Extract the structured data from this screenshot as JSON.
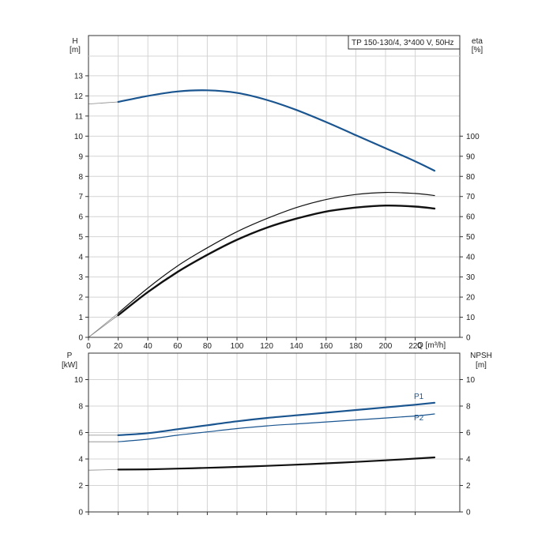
{
  "chart_data": [
    {
      "type": "line",
      "title": "TP 150-130/4, 3*400 V, 50Hz",
      "xlabel": "Q [m³/h]",
      "x_ticks": [
        "0",
        "20",
        "40",
        "60",
        "80",
        "100",
        "120",
        "140",
        "160",
        "180",
        "200",
        "220"
      ],
      "xlim": [
        0,
        250
      ],
      "left_axis": {
        "label_top": "H",
        "label_unit": "[m]",
        "ylim": [
          0,
          15
        ],
        "ticks": [
          0,
          1,
          2,
          3,
          4,
          5,
          6,
          7,
          8,
          9,
          10,
          11,
          12,
          13
        ]
      },
      "right_axis": {
        "label_top": "eta",
        "label_unit": "[%]",
        "ylim": [
          0,
          150
        ],
        "ticks": [
          0,
          10,
          20,
          30,
          40,
          50,
          60,
          70,
          80,
          90,
          100
        ]
      },
      "grid": true,
      "colors": {
        "head": "#1a5590",
        "eta": "#111111"
      },
      "series": [
        {
          "axis": "left",
          "color": "head",
          "width": 2.2,
          "points": [
            [
              20,
              11.7
            ],
            [
              40,
              12.0
            ],
            [
              60,
              12.22
            ],
            [
              80,
              12.28
            ],
            [
              100,
              12.15
            ],
            [
              120,
              11.8
            ],
            [
              140,
              11.3
            ],
            [
              160,
              10.7
            ],
            [
              180,
              10.05
            ],
            [
              200,
              9.4
            ],
            [
              220,
              8.75
            ],
            [
              233,
              8.28
            ]
          ],
          "extrapolated": [
            [
              0,
              11.6
            ],
            [
              20,
              11.7
            ]
          ]
        },
        {
          "axis": "right",
          "color": "eta",
          "width": 1.2,
          "points": [
            [
              20,
              12
            ],
            [
              40,
              24.5
            ],
            [
              60,
              35.5
            ],
            [
              80,
              44.5
            ],
            [
              100,
              52.5
            ],
            [
              120,
              59
            ],
            [
              140,
              64.5
            ],
            [
              160,
              68.5
            ],
            [
              180,
              71
            ],
            [
              200,
              72
            ],
            [
              220,
              71.5
            ],
            [
              233,
              70.5
            ]
          ],
          "extrapolated": [
            [
              0,
              0
            ],
            [
              20,
              12
            ]
          ]
        },
        {
          "axis": "right",
          "color": "eta",
          "width": 2.4,
          "points": [
            [
              20,
              11
            ],
            [
              40,
              22.5
            ],
            [
              60,
              32.5
            ],
            [
              80,
              41
            ],
            [
              100,
              48.5
            ],
            [
              120,
              54.5
            ],
            [
              140,
              59
            ],
            [
              160,
              62.5
            ],
            [
              180,
              64.5
            ],
            [
              200,
              65.5
            ],
            [
              220,
              65
            ],
            [
              233,
              64
            ]
          ],
          "extrapolated": [
            [
              0,
              0
            ],
            [
              20,
              11
            ]
          ]
        }
      ]
    },
    {
      "type": "line",
      "xlim": [
        0,
        250
      ],
      "left_axis": {
        "label_top": "P",
        "label_unit": "[kW]",
        "ylim": [
          0,
          12
        ],
        "ticks": [
          0,
          2,
          4,
          6,
          8,
          10
        ]
      },
      "right_axis": {
        "label_top": "NPSH",
        "label_unit": "[m]",
        "ylim": [
          0,
          12
        ],
        "ticks": [
          0,
          2,
          4,
          6,
          8,
          10
        ]
      },
      "grid": true,
      "colors": {
        "power": "#1a5590",
        "npsh": "#111111"
      },
      "series": [
        {
          "name": "P1",
          "color": "power",
          "width": 2.2,
          "points": [
            [
              20,
              5.8
            ],
            [
              40,
              5.95
            ],
            [
              60,
              6.25
            ],
            [
              80,
              6.55
            ],
            [
              100,
              6.85
            ],
            [
              120,
              7.1
            ],
            [
              140,
              7.3
            ],
            [
              160,
              7.5
            ],
            [
              180,
              7.7
            ],
            [
              200,
              7.9
            ],
            [
              220,
              8.1
            ],
            [
              233,
              8.25
            ]
          ],
          "extrapolated": [
            [
              0,
              5.8
            ],
            [
              20,
              5.8
            ]
          ]
        },
        {
          "name": "P2",
          "color": "power",
          "width": 1.2,
          "points": [
            [
              20,
              5.3
            ],
            [
              40,
              5.5
            ],
            [
              60,
              5.8
            ],
            [
              80,
              6.05
            ],
            [
              100,
              6.3
            ],
            [
              120,
              6.5
            ],
            [
              140,
              6.65
            ],
            [
              160,
              6.8
            ],
            [
              180,
              6.95
            ],
            [
              200,
              7.1
            ],
            [
              220,
              7.25
            ],
            [
              233,
              7.4
            ]
          ],
          "extrapolated": [
            [
              0,
              5.3
            ],
            [
              20,
              5.3
            ]
          ]
        },
        {
          "color": "npsh",
          "width": 2.2,
          "points": [
            [
              20,
              3.2
            ],
            [
              40,
              3.22
            ],
            [
              60,
              3.27
            ],
            [
              80,
              3.33
            ],
            [
              100,
              3.4
            ],
            [
              120,
              3.48
            ],
            [
              140,
              3.57
            ],
            [
              160,
              3.67
            ],
            [
              180,
              3.78
            ],
            [
              200,
              3.9
            ],
            [
              220,
              4.03
            ],
            [
              233,
              4.12
            ]
          ],
          "extrapolated": [
            [
              0,
              3.15
            ],
            [
              20,
              3.2
            ]
          ]
        }
      ]
    }
  ]
}
